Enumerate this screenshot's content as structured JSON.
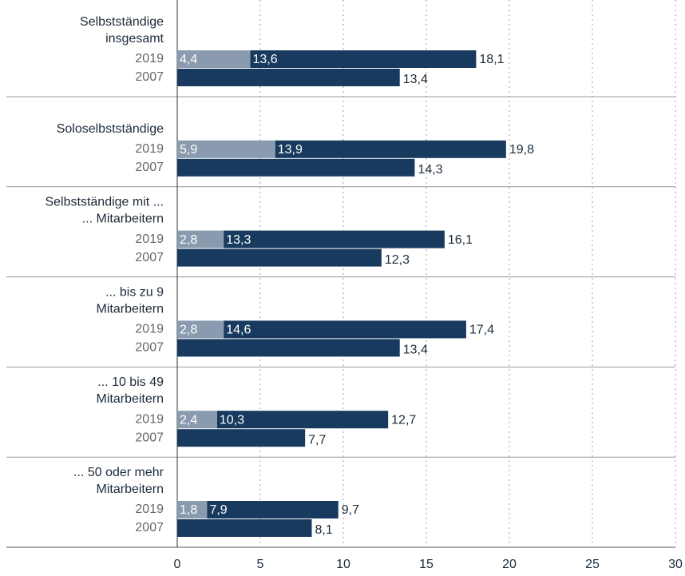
{
  "chart_data": {
    "type": "bar",
    "orientation": "horizontal",
    "categories": [
      "Selbstständige\ninsgesamt",
      "Soloselbstständige",
      "Selbstständige mit ...\n... Mitarbeitern",
      "... bis zu 9\nMitarbeitern",
      "... 10 bis 49\nMitarbeitern",
      "... 50 oder mehr\nMitarbeitern"
    ],
    "series": [
      {
        "name": "2019",
        "segments": [
          {
            "color": "#8a9bb0",
            "values": [
              4.4,
              5.9,
              2.8,
              2.8,
              2.4,
              1.8
            ],
            "value_labels": [
              "4,4",
              "5,9",
              "2,8",
              "2,8",
              "2,4",
              "1,8"
            ]
          },
          {
            "color": "#173a5e",
            "values": [
              13.6,
              13.9,
              13.3,
              14.6,
              10.3,
              7.9
            ],
            "value_labels": [
              "13,6",
              "13,9",
              "13,3",
              "14,6",
              "10,3",
              "7,9"
            ]
          }
        ],
        "totals": {
          "values": [
            18.1,
            19.8,
            16.1,
            17.4,
            12.7,
            9.7
          ],
          "value_labels": [
            "18,1",
            "19,8",
            "16,1",
            "17,4",
            "12,7",
            "9,7"
          ]
        }
      },
      {
        "name": "2007",
        "segments": [
          {
            "color": "#173a5e",
            "values": [
              13.4,
              14.3,
              12.3,
              13.4,
              7.7,
              8.1
            ],
            "value_labels": [
              "13,4",
              "14,3",
              "12,3",
              "13,4",
              "7,7",
              "8,1"
            ]
          }
        ]
      }
    ],
    "xlim": [
      0,
      30
    ],
    "xticks": [
      0,
      5,
      10,
      15,
      20,
      25,
      30
    ],
    "grid": true
  }
}
